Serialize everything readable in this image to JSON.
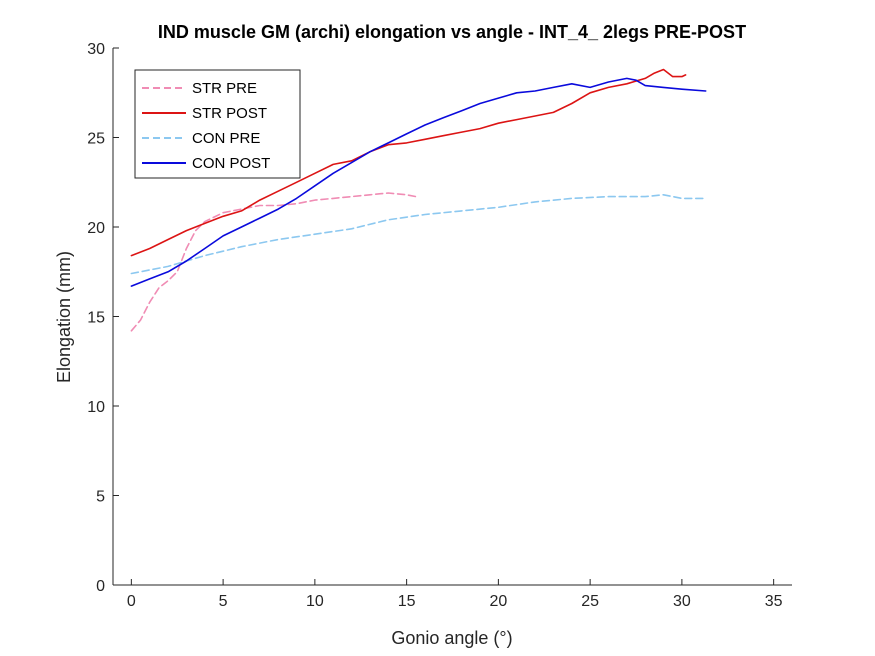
{
  "chart_data": {
    "type": "line",
    "title": "IND muscle GM (archi) elongation vs angle - INT_4_ 2legs PRE-POST",
    "xlabel": "Gonio angle (°)",
    "ylabel": "Elongation (mm)",
    "xlim": [
      -1,
      36
    ],
    "ylim": [
      0,
      30
    ],
    "xticks": [
      0,
      5,
      10,
      15,
      20,
      25,
      30,
      35
    ],
    "yticks": [
      0,
      5,
      10,
      15,
      20,
      25,
      30
    ],
    "grid": false,
    "legend_position": "top-left",
    "series": [
      {
        "name": "STR PRE",
        "color": "#F08CB4",
        "style": "dashed",
        "x": [
          0,
          0.5,
          1,
          1.5,
          2,
          2.5,
          3,
          3.5,
          4,
          5,
          6,
          7,
          8,
          9,
          10,
          11,
          12,
          13,
          14,
          15,
          15.5
        ],
        "y": [
          14.2,
          14.8,
          15.8,
          16.6,
          17.0,
          17.5,
          18.8,
          19.8,
          20.3,
          20.8,
          21.0,
          21.2,
          21.2,
          21.3,
          21.5,
          21.6,
          21.7,
          21.8,
          21.9,
          21.8,
          21.7
        ]
      },
      {
        "name": "STR POST",
        "color": "#DC1414",
        "style": "solid",
        "x": [
          0,
          1,
          2,
          3,
          4,
          5,
          6,
          7,
          8,
          9,
          10,
          11,
          12,
          13,
          14,
          15,
          16,
          17,
          18,
          19,
          20,
          21,
          22,
          23,
          24,
          25,
          26,
          27,
          28,
          28.5,
          29,
          29.5,
          30,
          30.2
        ],
        "y": [
          18.4,
          18.8,
          19.3,
          19.8,
          20.2,
          20.6,
          20.9,
          21.5,
          22.0,
          22.5,
          23.0,
          23.5,
          23.7,
          24.2,
          24.6,
          24.7,
          24.9,
          25.1,
          25.3,
          25.5,
          25.8,
          26.0,
          26.2,
          26.4,
          26.9,
          27.5,
          27.8,
          28.0,
          28.3,
          28.6,
          28.8,
          28.4,
          28.4,
          28.5
        ]
      },
      {
        "name": "CON PRE",
        "color": "#8CC8F0",
        "style": "dashed",
        "x": [
          0,
          2,
          4,
          6,
          8,
          10,
          12,
          14,
          16,
          18,
          20,
          22,
          24,
          26,
          28,
          29,
          30,
          31.3
        ],
        "y": [
          17.4,
          17.8,
          18.4,
          18.9,
          19.3,
          19.6,
          19.9,
          20.4,
          20.7,
          20.9,
          21.1,
          21.4,
          21.6,
          21.7,
          21.7,
          21.8,
          21.6,
          21.6
        ]
      },
      {
        "name": "CON POST",
        "color": "#0A0ADC",
        "style": "solid",
        "x": [
          0,
          1,
          2,
          3,
          4,
          5,
          6,
          7,
          8,
          9,
          10,
          11,
          12,
          13,
          14,
          15,
          16,
          17,
          18,
          19,
          20,
          21,
          22,
          23,
          24,
          25,
          26,
          27,
          27.5,
          28,
          29,
          30,
          31.3
        ],
        "y": [
          16.7,
          17.1,
          17.5,
          18.1,
          18.8,
          19.5,
          20.0,
          20.5,
          21.0,
          21.6,
          22.3,
          23.0,
          23.6,
          24.2,
          24.7,
          25.2,
          25.7,
          26.1,
          26.5,
          26.9,
          27.2,
          27.5,
          27.6,
          27.8,
          28.0,
          27.8,
          28.1,
          28.3,
          28.2,
          27.9,
          27.8,
          27.7,
          27.6
        ]
      }
    ]
  }
}
